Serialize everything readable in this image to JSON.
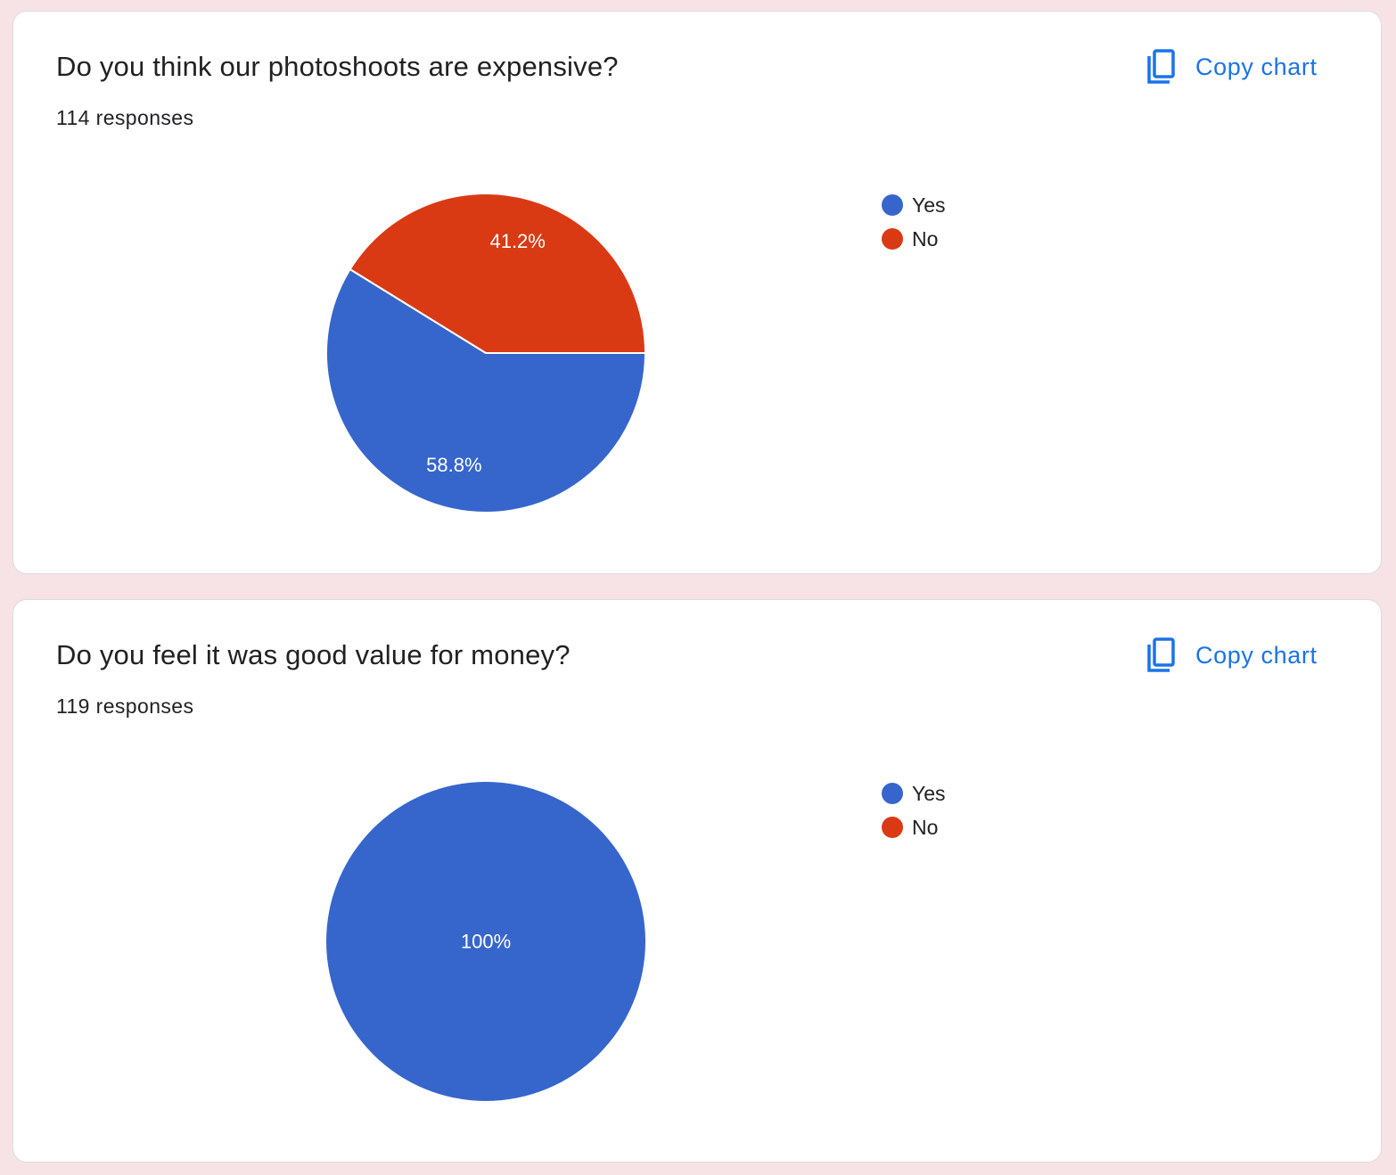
{
  "colors": {
    "yes": "#3666cc",
    "no": "#d93a14",
    "accent": "#1a73e8"
  },
  "cards": [
    {
      "question": "Do you think our photoshoots are expensive?",
      "responses": "114 responses",
      "copy_label": "Copy chart",
      "copy_icon": "copy-icon"
    },
    {
      "question": "Do you feel it was good value for money?",
      "responses": "119 responses",
      "copy_label": "Copy chart",
      "copy_icon": "copy-icon"
    }
  ],
  "chart_data": [
    {
      "type": "pie",
      "title": "Do you think our photoshoots are expensive?",
      "legend": "right",
      "slices": [
        {
          "label": "Yes",
          "value": 58.8,
          "display": "58.8%",
          "color": "#3666cc"
        },
        {
          "label": "No",
          "value": 41.2,
          "display": "41.2%",
          "color": "#d93a14"
        }
      ]
    },
    {
      "type": "pie",
      "title": "Do you feel it was good value for money?",
      "legend": "right",
      "slices": [
        {
          "label": "Yes",
          "value": 100,
          "display": "100%",
          "color": "#3666cc"
        },
        {
          "label": "No",
          "value": 0,
          "display": "",
          "color": "#d93a14"
        }
      ]
    }
  ]
}
